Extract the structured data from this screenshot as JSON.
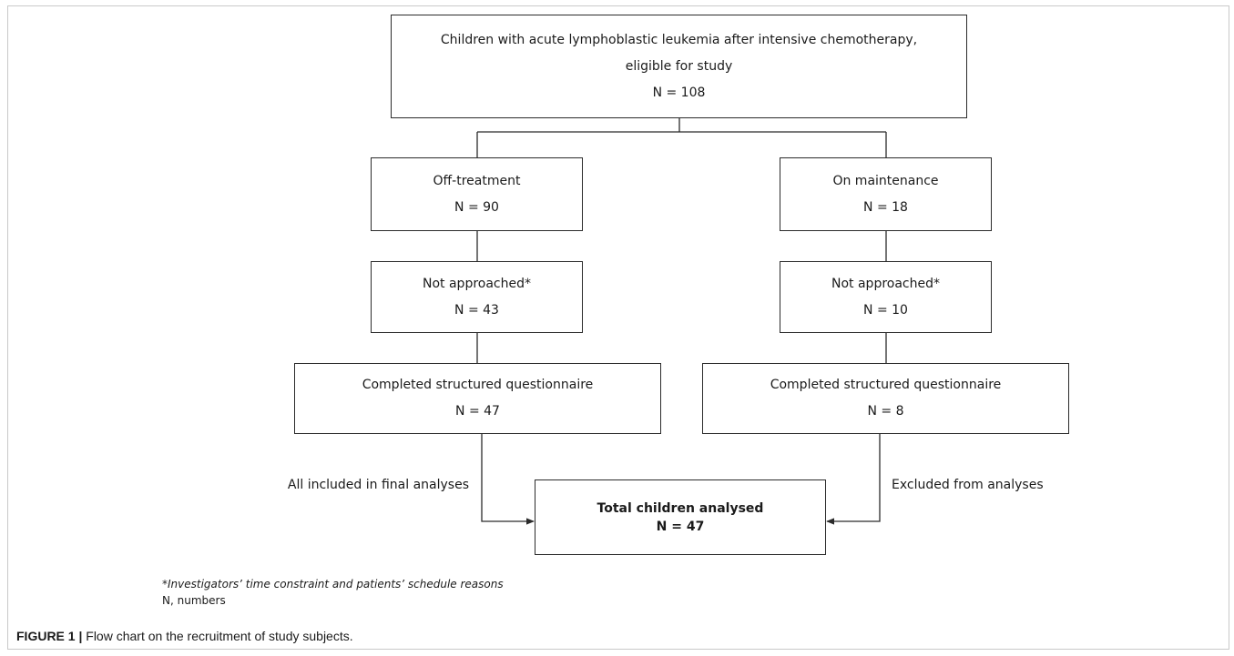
{
  "nodes": {
    "eligible": {
      "line1": "Children with acute lymphoblastic leukemia after intensive chemotherapy,",
      "line2": "eligible for study",
      "count": "N = 108"
    },
    "off_treatment": {
      "label": "Off-treatment",
      "count": "N = 90"
    },
    "on_maintenance": {
      "label": "On maintenance",
      "count": "N = 18"
    },
    "off_not_approached": {
      "label": "Not approached*",
      "count": "N = 43"
    },
    "on_not_approached": {
      "label": "Not approached*",
      "count": "N = 10"
    },
    "off_completed": {
      "label": "Completed structured questionnaire",
      "count": "N = 47"
    },
    "on_completed": {
      "label": "Completed structured questionnaire",
      "count": "N = 8"
    },
    "total": {
      "label": "Total children analysed",
      "count": "N = 47"
    }
  },
  "edge_labels": {
    "left": "All included in final analyses",
    "right": "Excluded from analyses"
  },
  "notes": {
    "footnote": "*Investigators’ time constraint and patients’ schedule reasons",
    "abbrev_letter": "N",
    "abbrev_text": ", numbers"
  },
  "caption": {
    "label": "FIGURE 1 |",
    "text": " Flow chart on the recruitment of study subjects."
  }
}
